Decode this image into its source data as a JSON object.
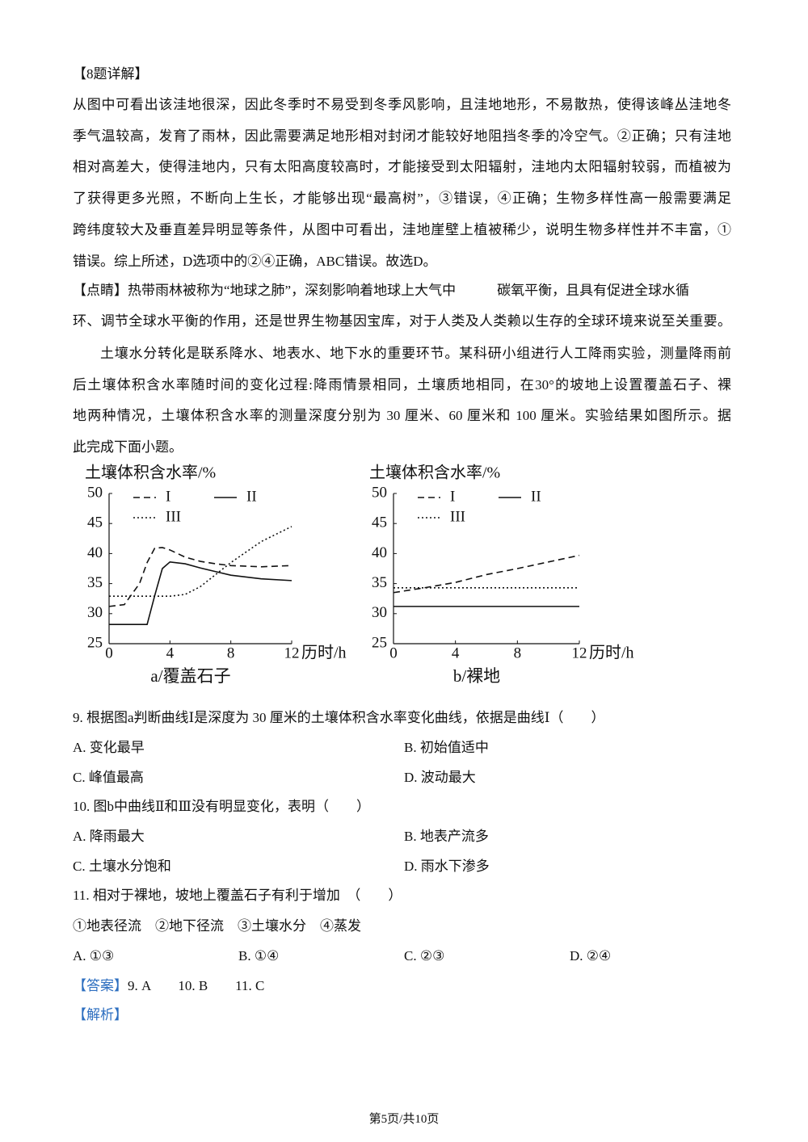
{
  "detail8": {
    "heading": "【8题详解】",
    "lines": [
      "从图中可看出该洼地很深，因此冬季时不易受到冬季风影响，且洼地地形，不易散热，使得该峰丛洼地冬",
      "季气温较高，发育了雨林，因此需要满足地形相对封闭才能较好地阻挡冬季的冷空气。②正确；只有洼地",
      "相对高差大，使得洼地内，只有太阳高度较高时，才能接受到太阳辐射，洼地内太阳辐射较弱，而植被为",
      "了获得更多光照，不断向上生长，才能够出现“最高树”，③错误，④正确；生物多样性高一般需要满足",
      "跨纬度较大及垂直差异明显等条件，从图中可看出，洼地崖壁上植被稀少，说明生物多样性并不丰富，①",
      "错误。综上所述，D选项中的②④正确，ABC错误。故选D。"
    ]
  },
  "tip": {
    "label": "【点睛】",
    "lines": [
      "热带雨林被称为“地球之肺”，深刻影响着地球上大气中　　　碳氧平衡，且具有促进全球水循",
      "环、调节全球水平衡的作用，还是世界生物基因宝库，对于人类及人类赖以生存的全球环境来说至关重要。"
    ]
  },
  "material": {
    "lines": [
      "土壤水分转化是联系降水、地表水、地下水的重要环节。某科研小组进行人工降雨实验，测量降雨前",
      "后土壤体积含水率随时间的变化过程:降雨情景相同，土壤质地相同，在30°的坡地上设置覆盖石子、裸",
      "地两种情况，土壤体积含水率的测量深度分别为 30 厘米、60 厘米和 100 厘米。实验结果如图所示。据",
      "此完成下面小题。"
    ]
  },
  "chart_data": [
    {
      "type": "line",
      "y_label": "土壤体积含水率/%",
      "x_label": "历时/h",
      "caption": "a/覆盖石子",
      "x": [
        0,
        1,
        2,
        2.5,
        3,
        3.5,
        4,
        5,
        6,
        7,
        8,
        10,
        12
      ],
      "series": [
        {
          "name": "I",
          "color": "#111",
          "style": "dashed",
          "values": [
            31.2,
            31.5,
            35,
            38.5,
            40.9,
            41,
            40.6,
            39.4,
            38.7,
            38.3,
            38,
            37.8,
            38
          ]
        },
        {
          "name": "II",
          "color": "#111",
          "style": "solid",
          "values": [
            28.2,
            28.2,
            28.2,
            28.2,
            33,
            37.5,
            38.6,
            38.3,
            37.6,
            37,
            36.4,
            35.8,
            35.5
          ]
        },
        {
          "name": "III",
          "color": "#111",
          "style": "dotted",
          "values": [
            32.9,
            32.9,
            32.9,
            32.9,
            32.9,
            32.9,
            32.9,
            33.2,
            34.5,
            36.5,
            38.5,
            42,
            44.5
          ]
        }
      ],
      "xlim": [
        0,
        12
      ],
      "xticks": [
        0,
        4,
        8,
        12
      ],
      "ylim": [
        25,
        50
      ],
      "yticks": [
        25,
        30,
        35,
        40,
        45,
        50
      ]
    },
    {
      "type": "line",
      "y_label": "土壤体积含水率/%",
      "x_label": "历时/h",
      "caption": "b/裸地",
      "x": [
        0,
        2,
        4,
        6,
        8,
        10,
        12
      ],
      "series": [
        {
          "name": "I",
          "color": "#111",
          "style": "dashed",
          "values": [
            33.5,
            34.3,
            35.2,
            36.5,
            37.5,
            38.6,
            39.7
          ]
        },
        {
          "name": "II",
          "color": "#111",
          "style": "solid",
          "values": [
            31.2,
            31.2,
            31.2,
            31.2,
            31.2,
            31.2,
            31.2
          ]
        },
        {
          "name": "III",
          "color": "#111",
          "style": "dotted",
          "values": [
            34.3,
            34.3,
            34.3,
            34.3,
            34.3,
            34.3,
            34.3
          ]
        }
      ],
      "xlim": [
        0,
        12
      ],
      "xticks": [
        0,
        4,
        8,
        12
      ],
      "ylim": [
        25,
        50
      ],
      "yticks": [
        25,
        30,
        35,
        40,
        45,
        50
      ]
    }
  ],
  "questions": [
    {
      "stem": "9. 根据图a判断曲线Ⅰ是深度为 30 厘米的土壤体积含水率变化曲线，依据是曲线Ⅰ（　　）",
      "options": [
        "A. 变化最早",
        "B. 初始值适中",
        "C. 峰值最高",
        "D. 波动最大"
      ]
    },
    {
      "stem": "10. 图b中曲线Ⅱ和Ⅲ没有明显变化，表明（　　）",
      "options": [
        "A. 降雨最大",
        "B. 地表产流多",
        "C. 土壤水分饱和",
        "D. 雨水下渗多"
      ]
    },
    {
      "stem": "11. 相对于裸地，坡地上覆盖石子有利于增加　（　　）",
      "items": "①地表径流　②地下径流　③土壤水分　④蒸发",
      "options": [
        "A. ①③",
        "B. ①④",
        "C. ②③",
        "D. ②④"
      ]
    }
  ],
  "answer": {
    "label": "【答案】",
    "text": "9. A　　10. B　　11. C"
  },
  "analysis": "【解析】",
  "footer": "第5页/共10页"
}
